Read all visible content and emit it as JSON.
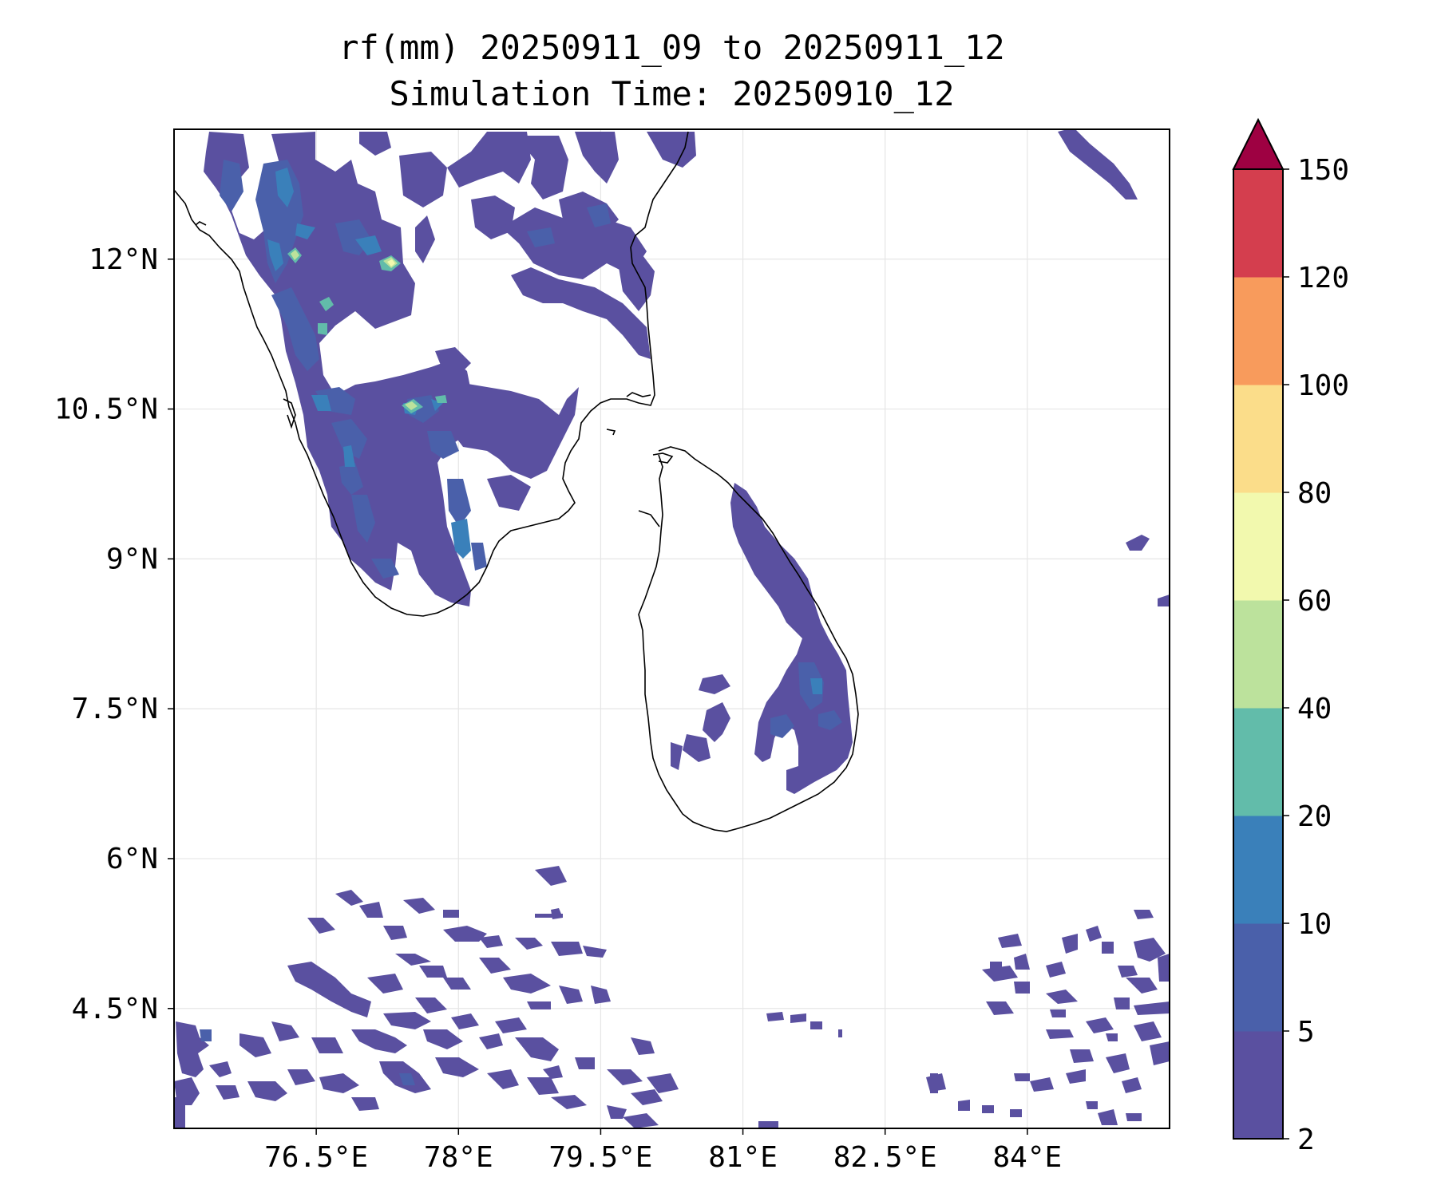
{
  "title": {
    "line1": "rf(mm) 20250911_09 to 20250911_12",
    "line2": "Simulation Time: 20250910_12"
  },
  "map": {
    "lon_range": [
      75.0,
      85.5
    ],
    "lat_range": [
      3.3,
      13.3
    ],
    "x_ticks": [
      "76.5°E",
      "78°E",
      "79.5°E",
      "81°E",
      "82.5°E",
      "84°E"
    ],
    "x_tick_values": [
      76.5,
      78.0,
      79.5,
      81.0,
      82.5,
      84.0
    ],
    "y_ticks": [
      "12°N",
      "10.5°N",
      "9°N",
      "7.5°N",
      "6°N",
      "4.5°N"
    ],
    "y_tick_values": [
      12.0,
      10.5,
      9.0,
      7.5,
      6.0,
      4.5
    ],
    "grid": true,
    "coastline_color": "#000000"
  },
  "colorbar": {
    "levels": [
      "2",
      "5",
      "10",
      "20",
      "40",
      "60",
      "80",
      "100",
      "120",
      "150"
    ],
    "colors": [
      "#5a50a0",
      "#4a60aa",
      "#3a80ba",
      "#62bcaa",
      "#bce29c",
      "#f2f9ae",
      "#fbdd8a",
      "#f89b5c",
      "#d43e4e"
    ],
    "extend_color": "#9e0142",
    "extend": "max"
  }
}
